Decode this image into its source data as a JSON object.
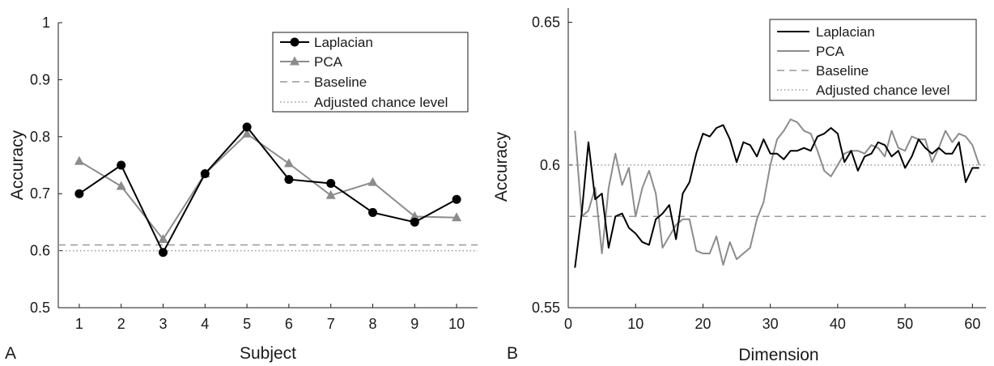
{
  "chart_data": [
    {
      "type": "line",
      "panel_label": "A",
      "xlabel": "Subject",
      "ylabel": "Accuracy",
      "x": [
        1,
        2,
        3,
        4,
        5,
        6,
        7,
        8,
        9,
        10
      ],
      "xlim": [
        0.5,
        10.5
      ],
      "ylim": [
        0.5,
        1.0
      ],
      "xticks": [
        "1",
        "2",
        "3",
        "4",
        "5",
        "6",
        "7",
        "8",
        "9",
        "10"
      ],
      "yticks": [
        "0.5",
        "0.6",
        "0.7",
        "0.8",
        "0.9",
        "1"
      ],
      "legend_position": "top-right",
      "grid": false,
      "series": [
        {
          "name": "Laplacian",
          "color": "#000000",
          "marker": "circle",
          "style": "solid",
          "values": [
            0.7,
            0.75,
            0.597,
            0.735,
            0.817,
            0.725,
            0.718,
            0.667,
            0.65,
            0.69
          ]
        },
        {
          "name": "PCA",
          "color": "#8c8c8c",
          "marker": "triangle",
          "style": "solid",
          "values": [
            0.757,
            0.713,
            0.62,
            0.735,
            0.805,
            0.753,
            0.697,
            0.72,
            0.66,
            0.658
          ]
        },
        {
          "name": "Baseline",
          "color": "#999999",
          "marker": "none",
          "style": "dashed",
          "values": [
            0.61,
            0.61,
            0.61,
            0.61,
            0.61,
            0.61,
            0.61,
            0.61,
            0.61,
            0.61
          ]
        },
        {
          "name": "Adjusted chance level",
          "color": "#999999",
          "marker": "none",
          "style": "dotted",
          "values": [
            0.6,
            0.6,
            0.6,
            0.6,
            0.6,
            0.6,
            0.6,
            0.6,
            0.6,
            0.6
          ]
        }
      ]
    },
    {
      "type": "line",
      "panel_label": "B",
      "xlabel": "Dimension",
      "ylabel": "Accuracy",
      "xlim": [
        0,
        62
      ],
      "ylim": [
        0.55,
        0.655
      ],
      "xticks": [
        "0",
        "10",
        "20",
        "30",
        "40",
        "50",
        "60"
      ],
      "yticks": [
        "0.55",
        "0.6",
        "0.65"
      ],
      "legend_position": "top-right",
      "grid": false,
      "series": [
        {
          "name": "Laplacian",
          "color": "#000000",
          "style": "solid",
          "x": [
            1,
            2,
            3,
            4,
            5,
            6,
            7,
            8,
            9,
            10,
            11,
            12,
            13,
            14,
            15,
            16,
            17,
            18,
            19,
            20,
            21,
            22,
            23,
            24,
            25,
            26,
            27,
            28,
            29,
            30,
            31,
            32,
            33,
            34,
            35,
            36,
            37,
            38,
            39,
            40,
            41,
            42,
            43,
            44,
            45,
            46,
            47,
            48,
            49,
            50,
            51,
            52,
            53,
            54,
            55,
            56,
            57,
            58,
            59,
            60,
            61
          ],
          "values": [
            0.564,
            0.583,
            0.608,
            0.588,
            0.59,
            0.571,
            0.582,
            0.583,
            0.578,
            0.576,
            0.573,
            0.572,
            0.581,
            0.583,
            0.586,
            0.574,
            0.59,
            0.594,
            0.604,
            0.611,
            0.61,
            0.613,
            0.614,
            0.609,
            0.601,
            0.608,
            0.607,
            0.603,
            0.609,
            0.604,
            0.604,
            0.602,
            0.605,
            0.605,
            0.606,
            0.605,
            0.61,
            0.611,
            0.613,
            0.611,
            0.601,
            0.605,
            0.598,
            0.603,
            0.604,
            0.608,
            0.607,
            0.603,
            0.605,
            0.599,
            0.603,
            0.609,
            0.606,
            0.604,
            0.606,
            0.604,
            0.604,
            0.608,
            0.594,
            0.599,
            0.599
          ]
        },
        {
          "name": "PCA",
          "color": "#8c8c8c",
          "style": "solid",
          "x": [
            1,
            2,
            3,
            4,
            5,
            6,
            7,
            8,
            9,
            10,
            11,
            12,
            13,
            14,
            15,
            16,
            17,
            18,
            19,
            20,
            21,
            22,
            23,
            24,
            25,
            26,
            27,
            28,
            29,
            30,
            31,
            32,
            33,
            34,
            35,
            36,
            37,
            38,
            39,
            40,
            41,
            42,
            43,
            44,
            45,
            46,
            47,
            48,
            49,
            50,
            51,
            52,
            53,
            54,
            55,
            56,
            57,
            58,
            59,
            60,
            61
          ],
          "values": [
            0.612,
            0.582,
            0.584,
            0.592,
            0.569,
            0.592,
            0.604,
            0.593,
            0.599,
            0.582,
            0.592,
            0.598,
            0.59,
            0.571,
            0.575,
            0.579,
            0.581,
            0.581,
            0.57,
            0.569,
            0.569,
            0.575,
            0.565,
            0.573,
            0.567,
            0.569,
            0.571,
            0.581,
            0.587,
            0.6,
            0.609,
            0.612,
            0.616,
            0.615,
            0.612,
            0.611,
            0.605,
            0.598,
            0.596,
            0.6,
            0.604,
            0.605,
            0.605,
            0.604,
            0.607,
            0.606,
            0.603,
            0.612,
            0.606,
            0.605,
            0.61,
            0.609,
            0.609,
            0.601,
            0.606,
            0.612,
            0.608,
            0.611,
            0.61,
            0.607,
            0.6
          ]
        },
        {
          "name": "Baseline",
          "color": "#999999",
          "style": "dashed",
          "x": [
            0,
            62
          ],
          "values": [
            0.582,
            0.582
          ]
        },
        {
          "name": "Adjusted chance level",
          "color": "#999999",
          "style": "dotted",
          "x": [
            0,
            62
          ],
          "values": [
            0.6,
            0.6
          ]
        }
      ]
    }
  ]
}
